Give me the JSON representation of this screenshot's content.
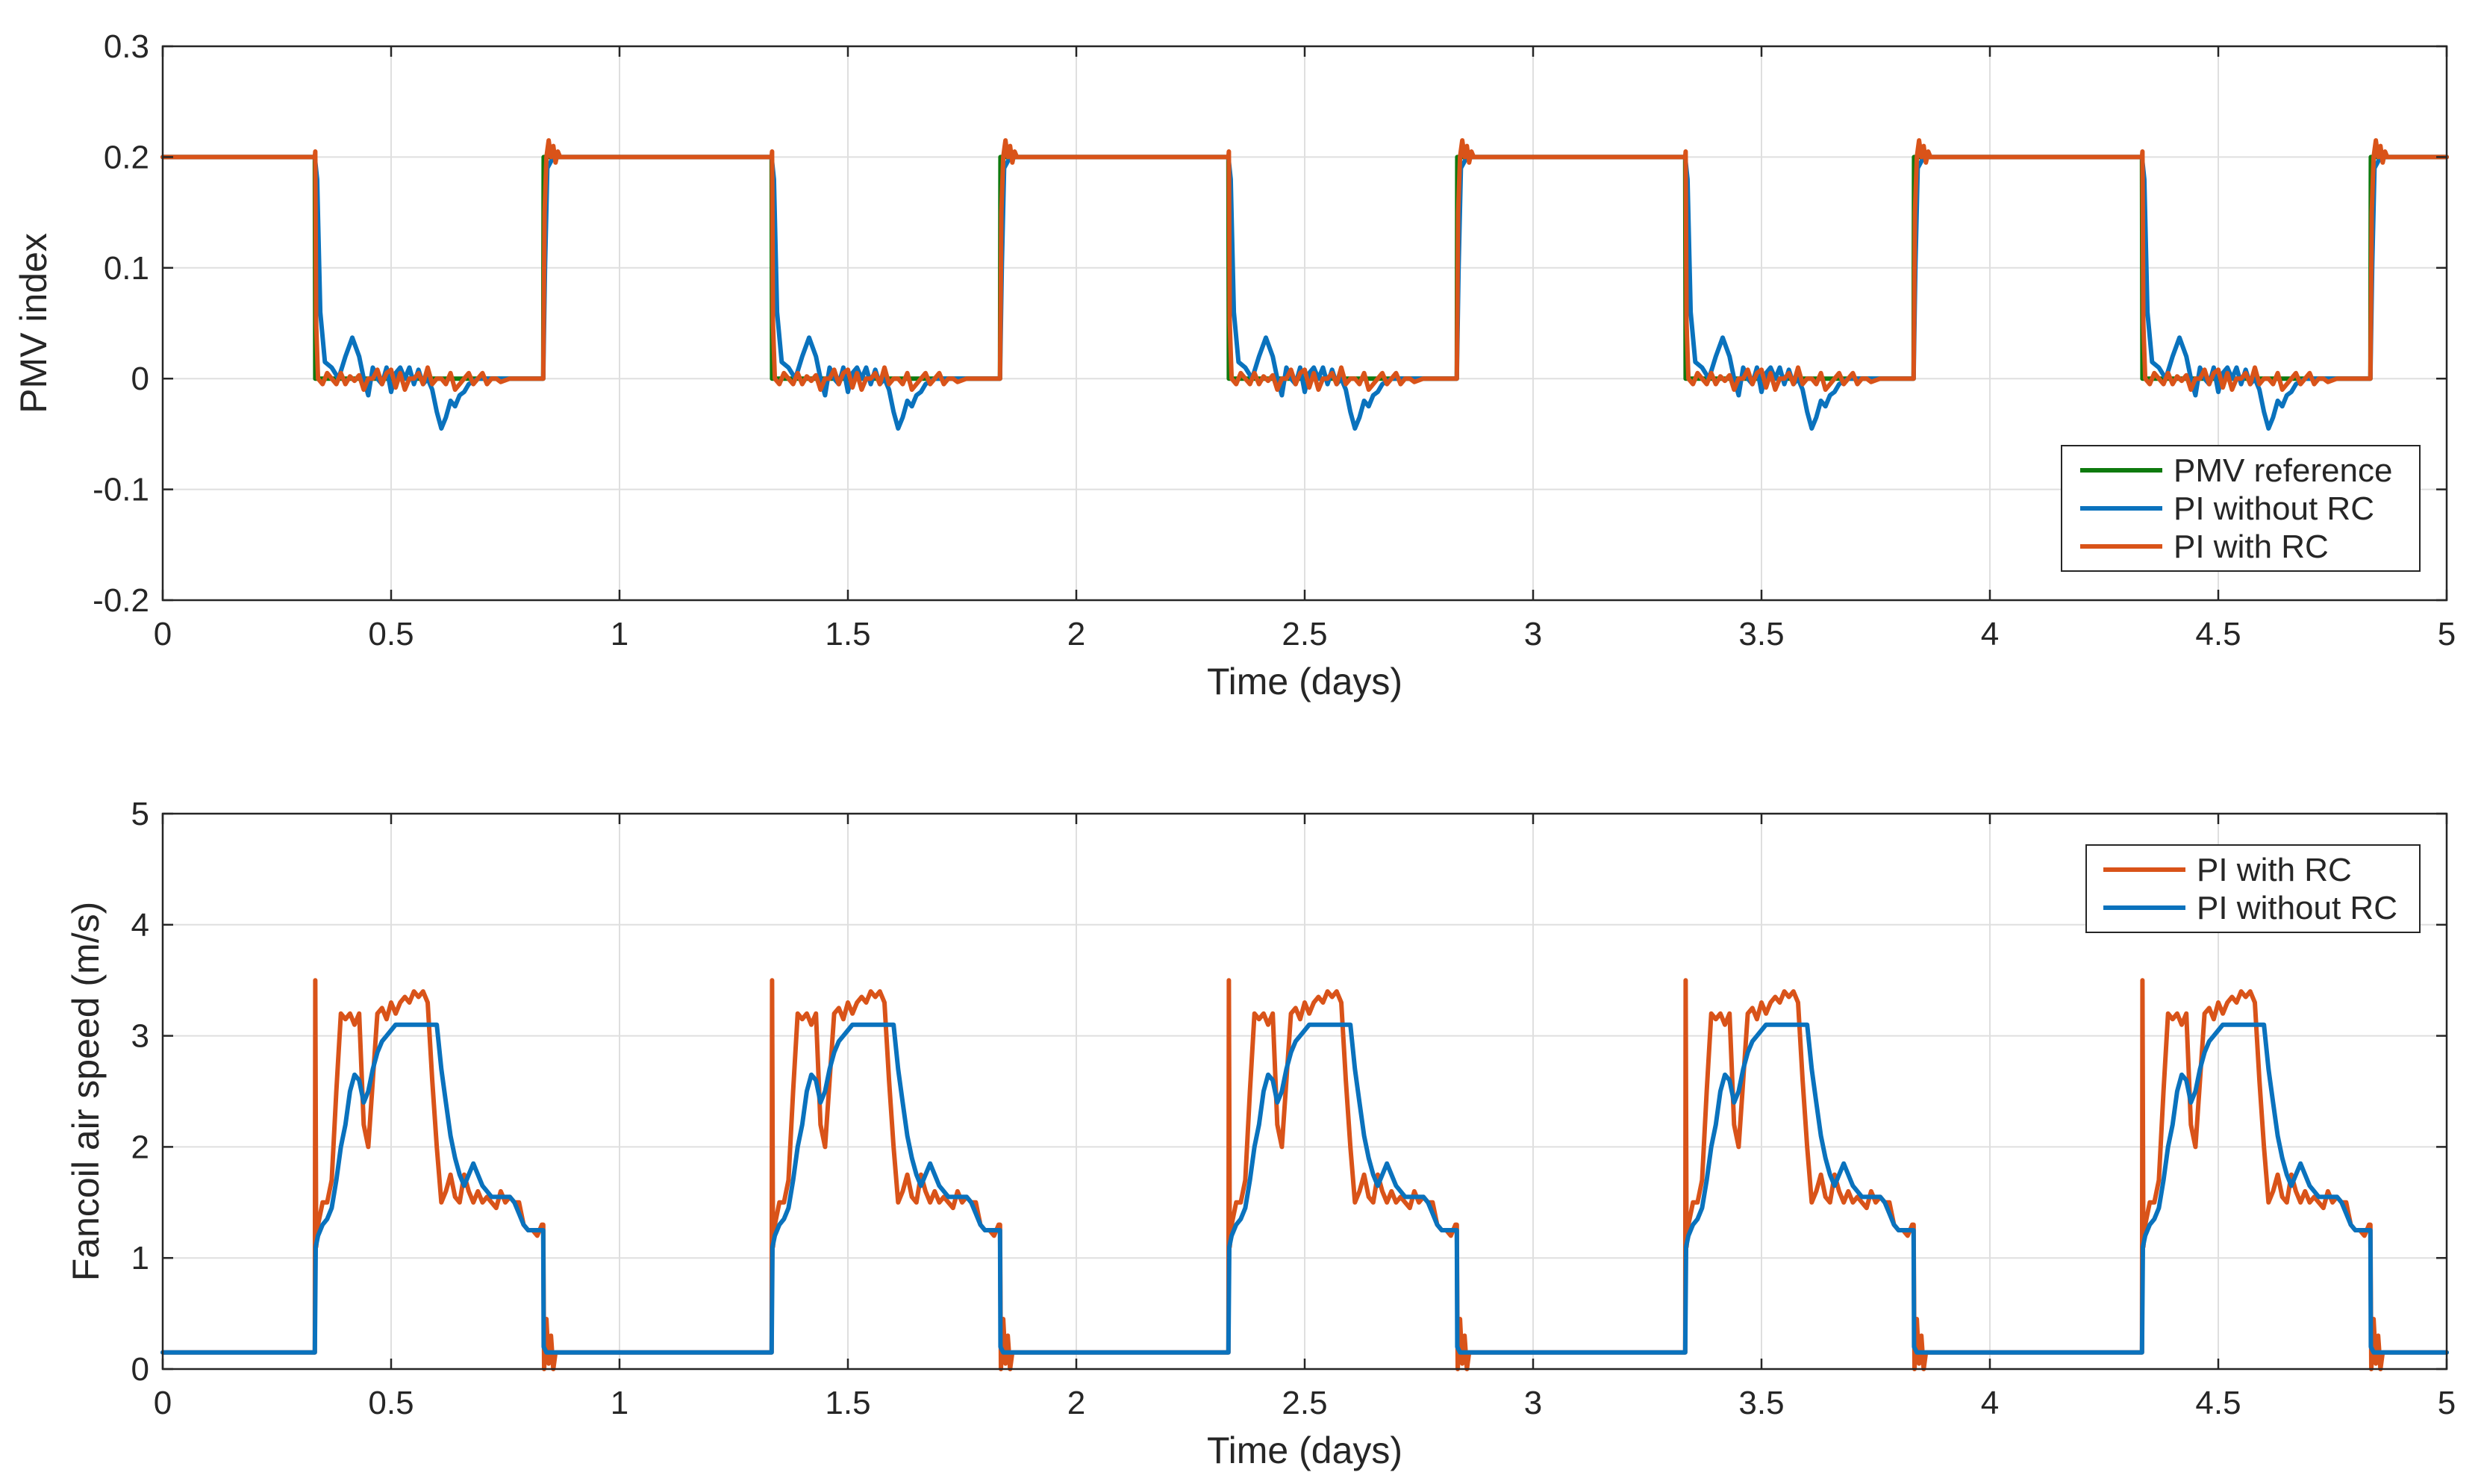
{
  "chart_data": [
    {
      "type": "line",
      "xlabel": "Time (days)",
      "ylabel": "PMV index",
      "xlim": [
        0,
        5
      ],
      "ylim": [
        -0.2,
        0.3
      ],
      "xticks": [
        0,
        0.5,
        1,
        1.5,
        2,
        2.5,
        3,
        3.5,
        4,
        4.5,
        5
      ],
      "xtick_labels": [
        "0",
        "0.5",
        "1",
        "1.5",
        "2",
        "2.5",
        "3",
        "3.5",
        "4",
        "4.5",
        "5"
      ],
      "yticks": [
        -0.2,
        -0.1,
        0,
        0.1,
        0.2,
        0.3
      ],
      "ytick_labels": [
        "-0.2",
        "-0.1",
        "0",
        "0.1",
        "0.2",
        "0.3"
      ],
      "grid": true,
      "legend_position": "bottom-right",
      "period_days": 1,
      "series": [
        {
          "name": "PMV reference",
          "color": "#0e7a0e",
          "points": [
            [
              0,
              0.2
            ],
            [
              0.333,
              0.2
            ],
            [
              0.334,
              0.0
            ],
            [
              0.833,
              0.0
            ],
            [
              0.834,
              0.2
            ],
            [
              1.0,
              0.2
            ]
          ]
        },
        {
          "name": "PI without RC",
          "color": "#0a72bd",
          "points": [
            [
              0,
              0.2
            ],
            [
              0.333,
              0.2
            ],
            [
              0.338,
              0.18
            ],
            [
              0.345,
              0.06
            ],
            [
              0.355,
              0.015
            ],
            [
              0.37,
              0.01
            ],
            [
              0.385,
              0.0
            ],
            [
              0.4,
              0.02
            ],
            [
              0.415,
              0.037
            ],
            [
              0.43,
              0.02
            ],
            [
              0.44,
              0.0
            ],
            [
              0.45,
              -0.015
            ],
            [
              0.46,
              0.01
            ],
            [
              0.47,
              0.0
            ],
            [
              0.48,
              -0.005
            ],
            [
              0.49,
              0.01
            ],
            [
              0.5,
              -0.012
            ],
            [
              0.51,
              0.005
            ],
            [
              0.52,
              0.01
            ],
            [
              0.53,
              0.0
            ],
            [
              0.54,
              0.01
            ],
            [
              0.55,
              -0.005
            ],
            [
              0.56,
              0.008
            ],
            [
              0.57,
              -0.005
            ],
            [
              0.58,
              0.0
            ],
            [
              0.59,
              -0.01
            ],
            [
              0.6,
              -0.03
            ],
            [
              0.61,
              -0.045
            ],
            [
              0.62,
              -0.035
            ],
            [
              0.63,
              -0.02
            ],
            [
              0.64,
              -0.025
            ],
            [
              0.65,
              -0.015
            ],
            [
              0.66,
              -0.012
            ],
            [
              0.67,
              -0.005
            ],
            [
              0.69,
              0.0
            ],
            [
              0.72,
              0.0
            ],
            [
              0.76,
              0.0
            ],
            [
              0.8,
              0.0
            ],
            [
              0.833,
              0.0
            ],
            [
              0.837,
              0.1
            ],
            [
              0.842,
              0.19
            ],
            [
              0.855,
              0.2
            ],
            [
              1.0,
              0.2
            ]
          ]
        },
        {
          "name": "PI with RC",
          "color": "#d95319",
          "points": [
            [
              0,
              0.2
            ],
            [
              0.333,
              0.2
            ],
            [
              0.334,
              0.205
            ],
            [
              0.336,
              0.05
            ],
            [
              0.34,
              0.0
            ],
            [
              0.35,
              -0.005
            ],
            [
              0.36,
              0.005
            ],
            [
              0.37,
              0.0
            ],
            [
              0.38,
              -0.005
            ],
            [
              0.39,
              0.005
            ],
            [
              0.4,
              -0.005
            ],
            [
              0.41,
              0.002
            ],
            [
              0.42,
              -0.002
            ],
            [
              0.43,
              0.003
            ],
            [
              0.44,
              -0.01
            ],
            [
              0.45,
              0.0
            ],
            [
              0.46,
              0.0
            ],
            [
              0.47,
              0.008
            ],
            [
              0.48,
              -0.005
            ],
            [
              0.49,
              0.005
            ],
            [
              0.5,
              0.008
            ],
            [
              0.51,
              -0.008
            ],
            [
              0.52,
              0.005
            ],
            [
              0.53,
              -0.01
            ],
            [
              0.54,
              0.0
            ],
            [
              0.55,
              0.0
            ],
            [
              0.56,
              0.005
            ],
            [
              0.57,
              -0.005
            ],
            [
              0.58,
              0.01
            ],
            [
              0.59,
              -0.005
            ],
            [
              0.6,
              0.0
            ],
            [
              0.61,
              0.0
            ],
            [
              0.62,
              -0.005
            ],
            [
              0.63,
              0.005
            ],
            [
              0.64,
              -0.01
            ],
            [
              0.65,
              -0.005
            ],
            [
              0.66,
              0.0
            ],
            [
              0.67,
              0.005
            ],
            [
              0.68,
              -0.005
            ],
            [
              0.69,
              0.0
            ],
            [
              0.7,
              0.005
            ],
            [
              0.71,
              -0.005
            ],
            [
              0.72,
              0.0
            ],
            [
              0.73,
              0.0
            ],
            [
              0.74,
              -0.003
            ],
            [
              0.76,
              0.0
            ],
            [
              0.78,
              0.0
            ],
            [
              0.8,
              0.0
            ],
            [
              0.833,
              0.0
            ],
            [
              0.836,
              0.15
            ],
            [
              0.84,
              0.2
            ],
            [
              0.845,
              0.215
            ],
            [
              0.85,
              0.2
            ],
            [
              0.855,
              0.21
            ],
            [
              0.86,
              0.195
            ],
            [
              0.865,
              0.205
            ],
            [
              0.87,
              0.2
            ],
            [
              0.88,
              0.2
            ],
            [
              1.0,
              0.2
            ]
          ]
        }
      ]
    },
    {
      "type": "line",
      "xlabel": "Time (days)",
      "ylabel": "Fancoil air speed (m/s)",
      "xlim": [
        0,
        5
      ],
      "ylim": [
        0,
        5
      ],
      "xticks": [
        0,
        0.5,
        1,
        1.5,
        2,
        2.5,
        3,
        3.5,
        4,
        4.5,
        5
      ],
      "xtick_labels": [
        "0",
        "0.5",
        "1",
        "1.5",
        "2",
        "2.5",
        "3",
        "3.5",
        "4",
        "4.5",
        "5"
      ],
      "yticks": [
        0,
        1,
        2,
        3,
        4,
        5
      ],
      "ytick_labels": [
        "0",
        "1",
        "2",
        "3",
        "4",
        "5"
      ],
      "grid": true,
      "legend_position": "top-right",
      "period_days": 1,
      "series": [
        {
          "name": "PI with RC",
          "color": "#d95319",
          "points": [
            [
              0,
              0.15
            ],
            [
              0.333,
              0.15
            ],
            [
              0.334,
              3.5
            ],
            [
              0.336,
              1.1
            ],
            [
              0.34,
              1.3
            ],
            [
              0.35,
              1.5
            ],
            [
              0.36,
              1.5
            ],
            [
              0.37,
              1.7
            ],
            [
              0.38,
              2.5
            ],
            [
              0.39,
              3.2
            ],
            [
              0.4,
              3.15
            ],
            [
              0.41,
              3.2
            ],
            [
              0.42,
              3.1
            ],
            [
              0.43,
              3.2
            ],
            [
              0.44,
              2.2
            ],
            [
              0.45,
              2.0
            ],
            [
              0.46,
              2.6
            ],
            [
              0.47,
              3.2
            ],
            [
              0.48,
              3.25
            ],
            [
              0.49,
              3.15
            ],
            [
              0.5,
              3.3
            ],
            [
              0.51,
              3.2
            ],
            [
              0.52,
              3.3
            ],
            [
              0.53,
              3.35
            ],
            [
              0.54,
              3.3
            ],
            [
              0.55,
              3.4
            ],
            [
              0.56,
              3.35
            ],
            [
              0.57,
              3.4
            ],
            [
              0.58,
              3.3
            ],
            [
              0.59,
              2.6
            ],
            [
              0.6,
              2.0
            ],
            [
              0.61,
              1.5
            ],
            [
              0.62,
              1.6
            ],
            [
              0.63,
              1.75
            ],
            [
              0.64,
              1.55
            ],
            [
              0.65,
              1.5
            ],
            [
              0.66,
              1.75
            ],
            [
              0.67,
              1.6
            ],
            [
              0.68,
              1.5
            ],
            [
              0.69,
              1.6
            ],
            [
              0.7,
              1.5
            ],
            [
              0.71,
              1.55
            ],
            [
              0.72,
              1.5
            ],
            [
              0.73,
              1.45
            ],
            [
              0.74,
              1.6
            ],
            [
              0.75,
              1.5
            ],
            [
              0.76,
              1.55
            ],
            [
              0.77,
              1.5
            ],
            [
              0.78,
              1.5
            ],
            [
              0.79,
              1.3
            ],
            [
              0.8,
              1.25
            ],
            [
              0.81,
              1.25
            ],
            [
              0.82,
              1.2
            ],
            [
              0.83,
              1.3
            ],
            [
              0.833,
              1.3
            ],
            [
              0.835,
              0.0
            ],
            [
              0.84,
              0.45
            ],
            [
              0.845,
              0.05
            ],
            [
              0.85,
              0.3
            ],
            [
              0.855,
              0.0
            ],
            [
              0.86,
              0.15
            ],
            [
              1.0,
              0.15
            ]
          ]
        },
        {
          "name": "PI without RC",
          "color": "#0a72bd",
          "points": [
            [
              0,
              0.15
            ],
            [
              0.333,
              0.15
            ],
            [
              0.335,
              1.1
            ],
            [
              0.34,
              1.2
            ],
            [
              0.35,
              1.3
            ],
            [
              0.36,
              1.35
            ],
            [
              0.37,
              1.45
            ],
            [
              0.38,
              1.7
            ],
            [
              0.39,
              2.0
            ],
            [
              0.4,
              2.2
            ],
            [
              0.41,
              2.5
            ],
            [
              0.42,
              2.65
            ],
            [
              0.43,
              2.6
            ],
            [
              0.44,
              2.4
            ],
            [
              0.45,
              2.5
            ],
            [
              0.46,
              2.7
            ],
            [
              0.47,
              2.85
            ],
            [
              0.48,
              2.95
            ],
            [
              0.49,
              3.0
            ],
            [
              0.5,
              3.05
            ],
            [
              0.51,
              3.1
            ],
            [
              0.52,
              3.1
            ],
            [
              0.55,
              3.1
            ],
            [
              0.58,
              3.1
            ],
            [
              0.6,
              3.1
            ],
            [
              0.61,
              2.7
            ],
            [
              0.62,
              2.4
            ],
            [
              0.63,
              2.1
            ],
            [
              0.64,
              1.9
            ],
            [
              0.65,
              1.75
            ],
            [
              0.66,
              1.65
            ],
            [
              0.67,
              1.75
            ],
            [
              0.68,
              1.85
            ],
            [
              0.69,
              1.75
            ],
            [
              0.7,
              1.65
            ],
            [
              0.71,
              1.6
            ],
            [
              0.72,
              1.55
            ],
            [
              0.73,
              1.55
            ],
            [
              0.74,
              1.55
            ],
            [
              0.75,
              1.55
            ],
            [
              0.76,
              1.55
            ],
            [
              0.77,
              1.5
            ],
            [
              0.78,
              1.4
            ],
            [
              0.79,
              1.3
            ],
            [
              0.8,
              1.25
            ],
            [
              0.81,
              1.25
            ],
            [
              0.82,
              1.25
            ],
            [
              0.833,
              1.25
            ],
            [
              0.834,
              0.2
            ],
            [
              0.84,
              0.15
            ],
            [
              1.0,
              0.15
            ]
          ]
        }
      ]
    }
  ],
  "legends": {
    "top_chart": [
      "PMV reference",
      "PI without RC",
      "PI with RC"
    ],
    "bottom_chart": [
      "PI with RC",
      "PI without RC"
    ]
  }
}
